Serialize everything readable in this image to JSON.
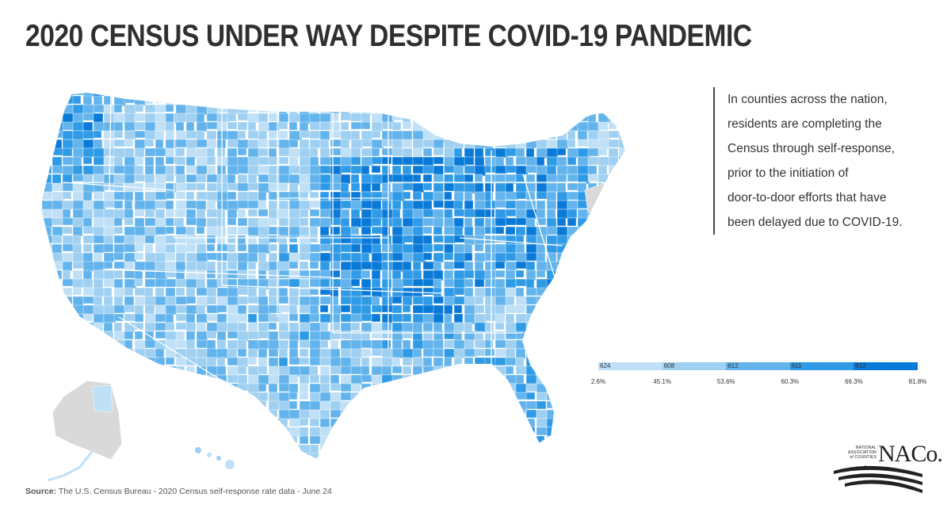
{
  "title": "2020 CENSUS UNDER WAY DESPITE COVID-19 PANDEMIC",
  "callout_lines": [
    "In counties across the nation,",
    "residents are completing the",
    "Census through self-response,",
    "prior to the initiation of",
    "door-to-door efforts that have",
    "been delayed due to COVID-19."
  ],
  "legend": {
    "classes": [
      {
        "count": "624",
        "color": "#bfe0f6"
      },
      {
        "count": "608",
        "color": "#9fd0f2"
      },
      {
        "count": "612",
        "color": "#63b4ec"
      },
      {
        "count": "611",
        "color": "#2f9ae6"
      },
      {
        "count": "612",
        "color": "#0a7ad8"
      }
    ],
    "breaks": [
      "2.6%",
      "45.1%",
      "53.6%",
      "60.3%",
      "66.3%",
      "81.8%"
    ],
    "no_data_color": "#d9d9d9"
  },
  "source": {
    "label": "Source:",
    "text": " The U.S. Census Bureau - 2020 Census self-response rate data - June 24"
  },
  "logo": {
    "small_text_1": "NATIONAL",
    "small_text_2": "ASSOCIATION",
    "small_text_3": "of COUNTIES",
    "big_text": "NACo."
  }
}
